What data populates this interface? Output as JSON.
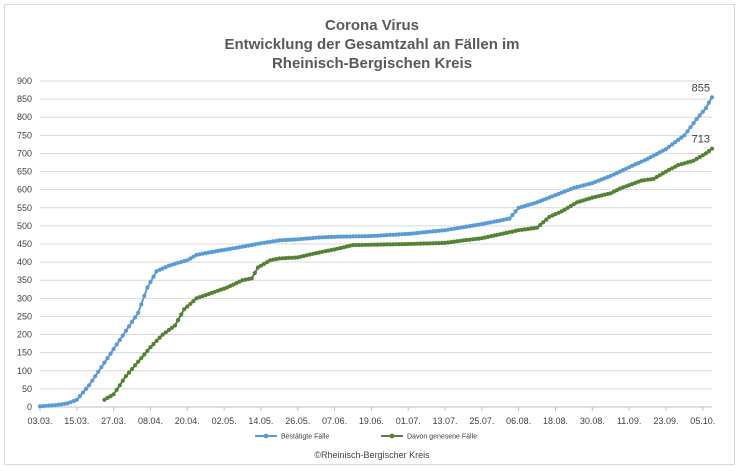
{
  "chart_data": {
    "type": "line",
    "title_lines": [
      "Corona Virus",
      "Entwicklung der Gesamtzahl an Fällen im",
      "Rheinisch-Bergischen Kreis"
    ],
    "credit": "©Rheinisch-Bergischer Kreis",
    "ylim": [
      0,
      900
    ],
    "y_ticks": [
      "0",
      "50",
      "100",
      "150",
      "200",
      "250",
      "300",
      "350",
      "400",
      "450",
      "500",
      "550",
      "600",
      "650",
      "700",
      "750",
      "800",
      "850",
      "900"
    ],
    "x_ticks": [
      "03.03.",
      "15.03.",
      "27.03.",
      "08.04.",
      "20.04.",
      "02.05.",
      "14.05.",
      "26.05.",
      "07.06.",
      "19.06.",
      "01.07.",
      "13.07.",
      "25.07.",
      "06.08.",
      "18.08.",
      "30.08.",
      "11.09.",
      "23.09.",
      "05.10."
    ],
    "x_range": [
      "2020-03-03",
      "2020-10-08"
    ],
    "grid": "horizontal",
    "legend_position": "bottom",
    "series": [
      {
        "name": "Bestätigte Fälle",
        "color": "#5b9bd5",
        "end_label": "855",
        "points": [
          [
            "2020-03-03",
            2
          ],
          [
            "2020-03-08",
            5
          ],
          [
            "2020-03-12",
            10
          ],
          [
            "2020-03-15",
            20
          ],
          [
            "2020-03-19",
            60
          ],
          [
            "2020-03-23",
            110
          ],
          [
            "2020-03-27",
            160
          ],
          [
            "2020-03-31",
            210
          ],
          [
            "2020-04-04",
            260
          ],
          [
            "2020-04-07",
            330
          ],
          [
            "2020-04-10",
            375
          ],
          [
            "2020-04-14",
            390
          ],
          [
            "2020-04-17",
            398
          ],
          [
            "2020-04-20",
            405
          ],
          [
            "2020-04-23",
            420
          ],
          [
            "2020-04-28",
            428
          ],
          [
            "2020-05-05",
            438
          ],
          [
            "2020-05-14",
            452
          ],
          [
            "2020-05-20",
            460
          ],
          [
            "2020-05-26",
            463
          ],
          [
            "2020-06-02",
            468
          ],
          [
            "2020-06-07",
            470
          ],
          [
            "2020-06-19",
            472
          ],
          [
            "2020-07-01",
            478
          ],
          [
            "2020-07-13",
            488
          ],
          [
            "2020-07-25",
            505
          ],
          [
            "2020-08-03",
            520
          ],
          [
            "2020-08-06",
            550
          ],
          [
            "2020-08-12",
            565
          ],
          [
            "2020-08-18",
            585
          ],
          [
            "2020-08-24",
            605
          ],
          [
            "2020-08-30",
            618
          ],
          [
            "2020-09-05",
            638
          ],
          [
            "2020-09-11",
            662
          ],
          [
            "2020-09-17",
            685
          ],
          [
            "2020-09-23",
            712
          ],
          [
            "2020-09-29",
            750
          ],
          [
            "2020-10-03",
            795
          ],
          [
            "2020-10-06",
            825
          ],
          [
            "2020-10-08",
            855
          ]
        ]
      },
      {
        "name": "Davon genesene Fälle",
        "color": "#548235",
        "end_label": "713",
        "points": [
          [
            "2020-03-24",
            20
          ],
          [
            "2020-03-27",
            35
          ],
          [
            "2020-03-31",
            85
          ],
          [
            "2020-04-04",
            125
          ],
          [
            "2020-04-08",
            165
          ],
          [
            "2020-04-12",
            200
          ],
          [
            "2020-04-16",
            225
          ],
          [
            "2020-04-19",
            270
          ],
          [
            "2020-04-23",
            300
          ],
          [
            "2020-04-28",
            315
          ],
          [
            "2020-05-03",
            330
          ],
          [
            "2020-05-08",
            350
          ],
          [
            "2020-05-11",
            355
          ],
          [
            "2020-05-13",
            385
          ],
          [
            "2020-05-17",
            405
          ],
          [
            "2020-05-20",
            410
          ],
          [
            "2020-05-26",
            413
          ],
          [
            "2020-06-01",
            425
          ],
          [
            "2020-06-07",
            435
          ],
          [
            "2020-06-13",
            447
          ],
          [
            "2020-06-19",
            448
          ],
          [
            "2020-07-01",
            450
          ],
          [
            "2020-07-13",
            453
          ],
          [
            "2020-07-19",
            460
          ],
          [
            "2020-07-25",
            466
          ],
          [
            "2020-07-31",
            477
          ],
          [
            "2020-08-06",
            488
          ],
          [
            "2020-08-12",
            495
          ],
          [
            "2020-08-16",
            525
          ],
          [
            "2020-08-20",
            540
          ],
          [
            "2020-08-25",
            565
          ],
          [
            "2020-08-30",
            578
          ],
          [
            "2020-09-05",
            590
          ],
          [
            "2020-09-08",
            603
          ],
          [
            "2020-09-15",
            625
          ],
          [
            "2020-09-19",
            630
          ],
          [
            "2020-09-23",
            650
          ],
          [
            "2020-09-27",
            668
          ],
          [
            "2020-10-02",
            680
          ],
          [
            "2020-10-06",
            700
          ],
          [
            "2020-10-08",
            713
          ]
        ]
      }
    ]
  }
}
